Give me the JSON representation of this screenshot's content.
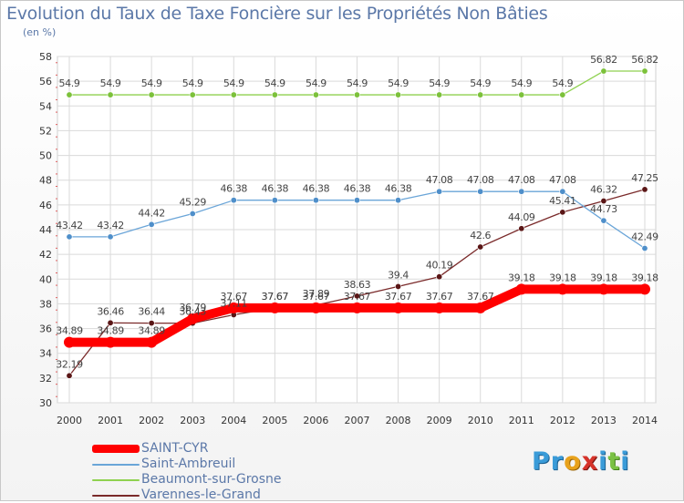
{
  "title": "Evolution du Taux de Taxe Foncière sur les Propriétés Non Bâties",
  "unit_label": "(en %)",
  "logo_text": "Proxiti",
  "chart_data": {
    "type": "line",
    "title": "Evolution du Taux de Taxe Foncière sur les Propriétés Non Bâties",
    "ylabel": "(en %)",
    "xlabel": "",
    "ylim": [
      30,
      58
    ],
    "yticks": [
      30,
      32,
      34,
      36,
      38,
      40,
      42,
      44,
      46,
      48,
      50,
      52,
      54,
      56,
      58
    ],
    "grid": true,
    "legend_position": "bottom-left",
    "categories": [
      "2000",
      "2001",
      "2002",
      "2003",
      "2004",
      "2005",
      "2006",
      "2007",
      "2008",
      "2009",
      "2010",
      "2011",
      "2012",
      "2013",
      "2014"
    ],
    "series": [
      {
        "name": "Varennes-le-Grand",
        "color": "#7a2a2a",
        "marker": "#5a1616",
        "values": [
          32.19,
          36.46,
          36.44,
          36.43,
          37.11,
          37.67,
          37.89,
          38.63,
          39.4,
          40.19,
          42.6,
          44.09,
          45.41,
          46.32,
          47.25
        ],
        "labels": [
          "32.19",
          "36.46",
          "36.44",
          "36.43",
          "37.11",
          "37.67",
          "37.89",
          "38.63",
          "39.4",
          "40.19",
          "42.6",
          "44.09",
          "45.41",
          "46.32",
          "47.25"
        ]
      },
      {
        "name": "Beaumont-sur-Grosne",
        "color": "#8fd14f",
        "marker": "#7cc13a",
        "values": [
          54.9,
          54.9,
          54.9,
          54.9,
          54.9,
          54.9,
          54.9,
          54.9,
          54.9,
          54.9,
          54.9,
          54.9,
          54.9,
          56.82,
          56.82
        ],
        "labels": [
          "54.9",
          "54.9",
          "54.9",
          "54.9",
          "54.9",
          "54.9",
          "54.9",
          "54.9",
          "54.9",
          "54.9",
          "54.9",
          "54.9",
          "54.9",
          "56.82",
          "56.82"
        ]
      },
      {
        "name": "Saint-Ambreuil",
        "color": "#6aa5d8",
        "marker": "#4f8fca",
        "values": [
          43.42,
          43.42,
          44.42,
          45.29,
          46.38,
          46.38,
          46.38,
          46.38,
          46.38,
          47.08,
          47.08,
          47.08,
          47.08,
          44.73,
          42.49
        ],
        "labels": [
          "43.42",
          "43.42",
          "44.42",
          "45.29",
          "46.38",
          "46.38",
          "46.38",
          "46.38",
          "46.38",
          "47.08",
          "47.08",
          "47.08",
          "47.08",
          "44.73",
          "42.49"
        ]
      },
      {
        "name": "SAINT-CYR",
        "color": "#ff0000",
        "marker": "#ff0000",
        "values": [
          34.89,
          34.89,
          34.89,
          36.79,
          37.67,
          37.67,
          37.67,
          37.67,
          37.67,
          37.67,
          37.67,
          39.18,
          39.18,
          39.18,
          39.18
        ],
        "labels": [
          "34.89",
          "34.89",
          "34.89",
          "36.79",
          "37.67",
          "37.67",
          "37.67",
          "37.67",
          "37.67",
          "37.67",
          "37.67",
          "39.18",
          "39.18",
          "39.18",
          "39.18"
        ]
      }
    ],
    "legend": [
      {
        "name": "SAINT-CYR",
        "color": "#ff0000"
      },
      {
        "name": "Saint-Ambreuil",
        "color": "#6aa5d8"
      },
      {
        "name": "Beaumont-sur-Grosne",
        "color": "#8fd14f"
      },
      {
        "name": "Varennes-le-Grand",
        "color": "#7a2a2a"
      }
    ]
  }
}
